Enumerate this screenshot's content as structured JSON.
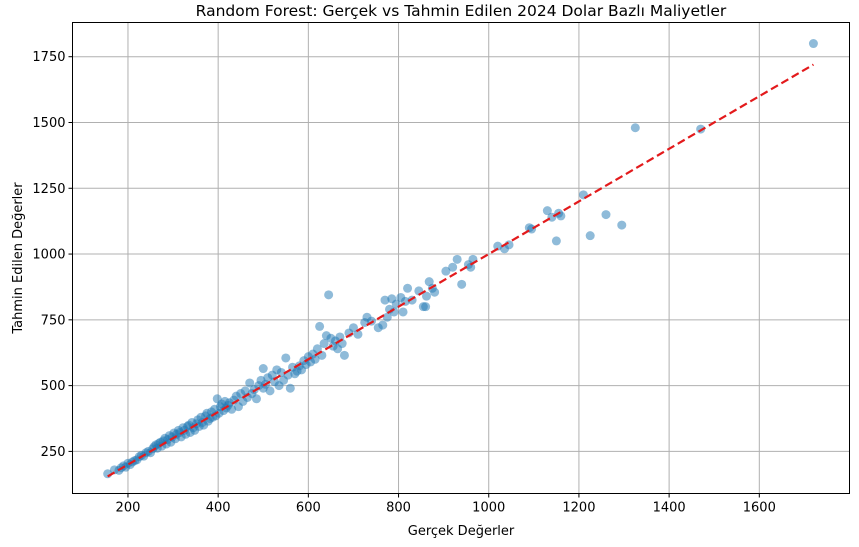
{
  "chart_data": {
    "type": "scatter",
    "title": "Random Forest: Gerçek vs Tahmin Edilen 2024 Dolar Bazlı Maliyetler",
    "xlabel": "Gerçek Değerler",
    "ylabel": "Tahmin Edilen Değerler",
    "xlim": [
      77,
      1800
    ],
    "ylim": [
      90,
      1880
    ],
    "xticks": [
      200,
      400,
      600,
      800,
      1000,
      1200,
      1400,
      1600
    ],
    "yticks": [
      250,
      500,
      750,
      1000,
      1250,
      1500,
      1750
    ],
    "grid": true,
    "point_color": "#1f77b4",
    "point_alpha": 0.5,
    "reference_line": {
      "x": [
        155,
        1720
      ],
      "y": [
        155,
        1720
      ],
      "color": "#e31a1c",
      "style": "dashed"
    },
    "series": [
      {
        "points": [
          [
            155,
            165
          ],
          [
            170,
            180
          ],
          [
            180,
            178
          ],
          [
            185,
            188
          ],
          [
            190,
            195
          ],
          [
            195,
            190
          ],
          [
            200,
            205
          ],
          [
            205,
            200
          ],
          [
            210,
            210
          ],
          [
            215,
            215
          ],
          [
            220,
            218
          ],
          [
            225,
            230
          ],
          [
            230,
            235
          ],
          [
            235,
            232
          ],
          [
            240,
            245
          ],
          [
            245,
            250
          ],
          [
            250,
            245
          ],
          [
            255,
            260
          ],
          [
            258,
            268
          ],
          [
            262,
            275
          ],
          [
            265,
            262
          ],
          [
            268,
            280
          ],
          [
            272,
            285
          ],
          [
            275,
            270
          ],
          [
            278,
            290
          ],
          [
            282,
            300
          ],
          [
            285,
            278
          ],
          [
            288,
            295
          ],
          [
            292,
            310
          ],
          [
            295,
            285
          ],
          [
            298,
            305
          ],
          [
            302,
            320
          ],
          [
            305,
            298
          ],
          [
            308,
            315
          ],
          [
            312,
            330
          ],
          [
            315,
            322
          ],
          [
            318,
            305
          ],
          [
            322,
            340
          ],
          [
            325,
            330
          ],
          [
            328,
            315
          ],
          [
            332,
            345
          ],
          [
            335,
            350
          ],
          [
            338,
            322
          ],
          [
            342,
            360
          ],
          [
            345,
            340
          ],
          [
            348,
            330
          ],
          [
            352,
            355
          ],
          [
            355,
            370
          ],
          [
            358,
            345
          ],
          [
            362,
            380
          ],
          [
            365,
            360
          ],
          [
            368,
            350
          ],
          [
            372,
            385
          ],
          [
            375,
            395
          ],
          [
            378,
            365
          ],
          [
            382,
            375
          ],
          [
            385,
            400
          ],
          [
            388,
            380
          ],
          [
            392,
            410
          ],
          [
            395,
            385
          ],
          [
            398,
            450
          ],
          [
            402,
            395
          ],
          [
            405,
            420
          ],
          [
            408,
            430
          ],
          [
            412,
            405
          ],
          [
            415,
            440
          ],
          [
            418,
            415
          ],
          [
            422,
            425
          ],
          [
            425,
            435
          ],
          [
            430,
            410
          ],
          [
            435,
            445
          ],
          [
            440,
            460
          ],
          [
            445,
            420
          ],
          [
            450,
            470
          ],
          [
            455,
            440
          ],
          [
            460,
            480
          ],
          [
            465,
            455
          ],
          [
            470,
            510
          ],
          [
            475,
            470
          ],
          [
            480,
            485
          ],
          [
            485,
            450
          ],
          [
            490,
            500
          ],
          [
            495,
            520
          ],
          [
            500,
            490
          ],
          [
            500,
            565
          ],
          [
            505,
            505
          ],
          [
            510,
            530
          ],
          [
            515,
            480
          ],
          [
            520,
            540
          ],
          [
            525,
            515
          ],
          [
            530,
            560
          ],
          [
            535,
            500
          ],
          [
            540,
            550
          ],
          [
            545,
            520
          ],
          [
            550,
            605
          ],
          [
            555,
            540
          ],
          [
            560,
            490
          ],
          [
            565,
            570
          ],
          [
            570,
            545
          ],
          [
            575,
            555
          ],
          [
            580,
            575
          ],
          [
            585,
            560
          ],
          [
            590,
            595
          ],
          [
            595,
            580
          ],
          [
            600,
            610
          ],
          [
            605,
            590
          ],
          [
            610,
            620
          ],
          [
            615,
            600
          ],
          [
            620,
            640
          ],
          [
            625,
            725
          ],
          [
            630,
            615
          ],
          [
            635,
            660
          ],
          [
            640,
            690
          ],
          [
            645,
            845
          ],
          [
            650,
            680
          ],
          [
            655,
            650
          ],
          [
            660,
            670
          ],
          [
            665,
            640
          ],
          [
            670,
            685
          ],
          [
            675,
            660
          ],
          [
            680,
            615
          ],
          [
            690,
            700
          ],
          [
            700,
            720
          ],
          [
            710,
            695
          ],
          [
            725,
            740
          ],
          [
            730,
            760
          ],
          [
            740,
            745
          ],
          [
            755,
            720
          ],
          [
            765,
            730
          ],
          [
            770,
            825
          ],
          [
            775,
            760
          ],
          [
            780,
            790
          ],
          [
            785,
            830
          ],
          [
            790,
            780
          ],
          [
            795,
            810
          ],
          [
            805,
            835
          ],
          [
            810,
            780
          ],
          [
            815,
            820
          ],
          [
            820,
            870
          ],
          [
            830,
            825
          ],
          [
            845,
            860
          ],
          [
            855,
            800
          ],
          [
            860,
            800
          ],
          [
            862,
            840
          ],
          [
            868,
            895
          ],
          [
            875,
            870
          ],
          [
            880,
            855
          ],
          [
            905,
            935
          ],
          [
            920,
            950
          ],
          [
            930,
            980
          ],
          [
            940,
            885
          ],
          [
            955,
            960
          ],
          [
            960,
            950
          ],
          [
            965,
            980
          ],
          [
            1020,
            1030
          ],
          [
            1035,
            1020
          ],
          [
            1045,
            1035
          ],
          [
            1090,
            1100
          ],
          [
            1095,
            1095
          ],
          [
            1130,
            1165
          ],
          [
            1140,
            1140
          ],
          [
            1150,
            1050
          ],
          [
            1155,
            1155
          ],
          [
            1160,
            1145
          ],
          [
            1210,
            1225
          ],
          [
            1225,
            1070
          ],
          [
            1260,
            1150
          ],
          [
            1295,
            1110
          ],
          [
            1325,
            1480
          ],
          [
            1470,
            1475
          ],
          [
            1720,
            1800
          ]
        ]
      }
    ]
  }
}
